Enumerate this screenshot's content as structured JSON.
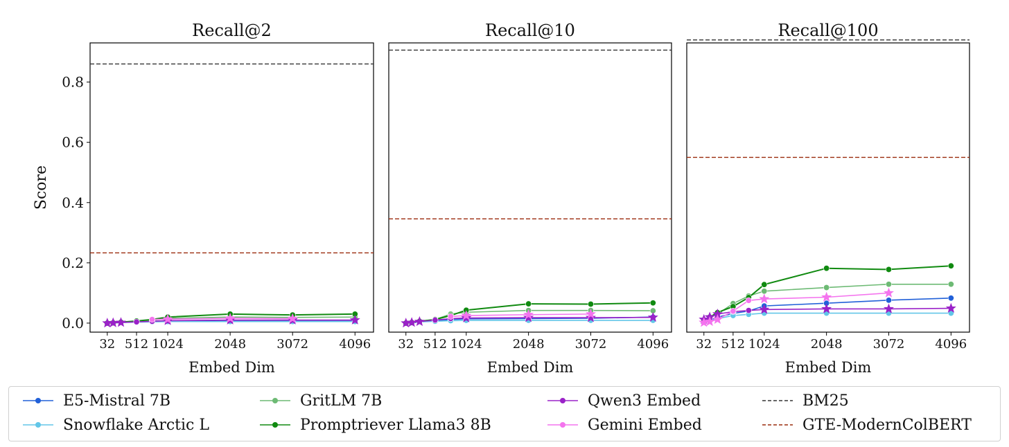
{
  "chart_data": [
    {
      "type": "line",
      "title": "Recall@2",
      "xlabel": "Embed Dim",
      "ylabel": "Score",
      "ylim": [
        -0.03,
        0.93
      ],
      "xlim": [
        -250,
        4400
      ],
      "ticks_y": [
        0.0,
        0.2,
        0.4,
        0.6,
        0.8
      ],
      "ticks_x": [
        32,
        512,
        1024,
        2048,
        3072,
        4096
      ],
      "series": [
        {
          "name": "E5-Mistral 7B",
          "key": "e5",
          "x": [
            32,
            128,
            256,
            512,
            768,
            1024,
            2048,
            3072,
            4096
          ],
          "y": [
            0.0,
            0.0,
            0.002,
            0.004,
            0.006,
            0.008,
            0.009,
            0.009,
            0.009
          ]
        },
        {
          "name": "Snowflake Arctic L",
          "key": "snow",
          "x": [
            32,
            128,
            256,
            512,
            768,
            1024,
            2048,
            3072,
            4096
          ],
          "y": [
            0.0,
            0.001,
            0.002,
            0.003,
            0.004,
            0.005,
            0.005,
            0.005,
            0.005
          ]
        },
        {
          "name": "GritLM 7B",
          "key": "grit",
          "x": [
            32,
            128,
            256,
            512,
            768,
            1024,
            2048,
            3072,
            4096
          ],
          "y": [
            0.0,
            0.001,
            0.003,
            0.006,
            0.01,
            0.016,
            0.02,
            0.019,
            0.02
          ]
        },
        {
          "name": "Promptriever Llama3 8B",
          "key": "prompt",
          "x": [
            32,
            128,
            256,
            512,
            768,
            1024,
            2048,
            3072,
            4096
          ],
          "y": [
            0.0,
            0.001,
            0.003,
            0.007,
            0.012,
            0.02,
            0.03,
            0.027,
            0.03
          ]
        },
        {
          "name": "Qwen3 Embed",
          "key": "qwen",
          "x": [
            32,
            128,
            256,
            512,
            768,
            1024,
            2048,
            3072,
            4096
          ],
          "y": [
            0.0,
            0.001,
            0.002,
            0.004,
            0.006,
            0.008,
            0.01,
            0.01,
            0.01
          ]
        },
        {
          "name": "Gemini Embed",
          "key": "gem",
          "x": [
            768,
            1024,
            2048,
            3072
          ],
          "y": [
            0.012,
            0.013,
            0.016,
            0.015
          ]
        }
      ],
      "baselines": [
        {
          "name": "BM25",
          "key": "bm25",
          "y": 0.86
        },
        {
          "name": "GTE-ModernColBERT",
          "key": "gte",
          "y": 0.233
        }
      ]
    },
    {
      "type": "line",
      "title": "Recall@10",
      "xlabel": "Embed Dim",
      "ylabel": "Score",
      "ylim": [
        -0.03,
        0.93
      ],
      "xlim": [
        -250,
        4400
      ],
      "ticks_y": [
        0.0,
        0.2,
        0.4,
        0.6,
        0.8
      ],
      "ticks_x": [
        32,
        512,
        1024,
        2048,
        3072,
        4096
      ],
      "series": [
        {
          "name": "E5-Mistral 7B",
          "key": "e5",
          "x": [
            32,
            128,
            256,
            512,
            768,
            1024,
            2048,
            3072,
            4096
          ],
          "y": [
            0.0,
            0.0,
            0.004,
            0.008,
            0.012,
            0.014,
            0.015,
            0.016,
            0.02
          ]
        },
        {
          "name": "Snowflake Arctic L",
          "key": "snow",
          "x": [
            32,
            128,
            256,
            512,
            768,
            1024,
            2048,
            3072,
            4096
          ],
          "y": [
            0.0,
            0.001,
            0.004,
            0.006,
            0.008,
            0.009,
            0.009,
            0.009,
            0.009
          ]
        },
        {
          "name": "GritLM 7B",
          "key": "grit",
          "x": [
            32,
            128,
            256,
            512,
            768,
            1024,
            2048,
            3072,
            4096
          ],
          "y": [
            0.0,
            0.002,
            0.006,
            0.012,
            0.03,
            0.036,
            0.042,
            0.042,
            0.041
          ]
        },
        {
          "name": "Promptriever Llama3 8B",
          "key": "prompt",
          "x": [
            32,
            128,
            256,
            512,
            768,
            1024,
            2048,
            3072,
            4096
          ],
          "y": [
            0.0,
            0.002,
            0.006,
            0.012,
            0.025,
            0.043,
            0.064,
            0.063,
            0.067
          ]
        },
        {
          "name": "Qwen3 Embed",
          "key": "qwen",
          "x": [
            32,
            128,
            256,
            512,
            768,
            1024,
            2048,
            3072,
            4096
          ],
          "y": [
            0.0,
            0.002,
            0.005,
            0.01,
            0.015,
            0.017,
            0.018,
            0.018,
            0.019
          ]
        },
        {
          "name": "Gemini Embed",
          "key": "gem",
          "x": [
            768,
            1024,
            2048,
            3072
          ],
          "y": [
            0.022,
            0.025,
            0.028,
            0.03
          ]
        }
      ],
      "baselines": [
        {
          "name": "BM25",
          "key": "bm25",
          "y": 0.906
        },
        {
          "name": "GTE-ModernColBERT",
          "key": "gte",
          "y": 0.346
        }
      ]
    },
    {
      "type": "line",
      "title": "Recall@100",
      "xlabel": "Embed Dim",
      "ylabel": "Score",
      "ylim": [
        -0.03,
        0.93
      ],
      "xlim": [
        -250,
        4400
      ],
      "ticks_y": [
        0.0,
        0.2,
        0.4,
        0.6,
        0.8
      ],
      "ticks_x": [
        32,
        512,
        1024,
        2048,
        3072,
        4096
      ],
      "series": [
        {
          "name": "E5-Mistral 7B",
          "key": "e5",
          "x": [
            32,
            128,
            256,
            512,
            768,
            1024,
            2048,
            3072,
            4096
          ],
          "y": [
            0.005,
            0.01,
            0.02,
            0.032,
            0.04,
            0.057,
            0.066,
            0.076,
            0.083
          ]
        },
        {
          "name": "Snowflake Arctic L",
          "key": "snow",
          "x": [
            32,
            128,
            256,
            512,
            768,
            1024,
            2048,
            3072,
            4096
          ],
          "y": [
            0.003,
            0.007,
            0.015,
            0.025,
            0.029,
            0.033,
            0.033,
            0.033,
            0.033
          ]
        },
        {
          "name": "GritLM 7B",
          "key": "grit",
          "x": [
            32,
            128,
            256,
            512,
            768,
            1024,
            2048,
            3072,
            4096
          ],
          "y": [
            0.008,
            0.018,
            0.03,
            0.065,
            0.09,
            0.106,
            0.118,
            0.129,
            0.129
          ]
        },
        {
          "name": "Promptriever Llama3 8B",
          "key": "prompt",
          "x": [
            32,
            128,
            256,
            512,
            768,
            1024,
            2048,
            3072,
            4096
          ],
          "y": [
            0.01,
            0.02,
            0.035,
            0.055,
            0.085,
            0.128,
            0.182,
            0.178,
            0.19
          ]
        },
        {
          "name": "Qwen3 Embed",
          "key": "qwen",
          "x": [
            32,
            128,
            256,
            512,
            768,
            1024,
            2048,
            3072,
            4096
          ],
          "y": [
            0.012,
            0.02,
            0.03,
            0.038,
            0.042,
            0.045,
            0.047,
            0.047,
            0.049
          ]
        },
        {
          "name": "Gemini Embed",
          "key": "gem",
          "x": [
            32,
            128,
            256,
            512,
            768,
            1024,
            2048,
            3072
          ],
          "y": [
            0.002,
            0.005,
            0.012,
            0.04,
            0.075,
            0.08,
            0.086,
            0.1
          ]
        }
      ],
      "baselines": [
        {
          "name": "BM25",
          "key": "bm25",
          "y": 0.94
        },
        {
          "name": "GTE-ModernColBERT",
          "key": "gte",
          "y": 0.55
        }
      ]
    }
  ],
  "colors": {
    "e5": "#2160d8",
    "snow": "#62c6e8",
    "grit": "#6dba74",
    "prompt": "#108a10",
    "qwen": "#9a22c8",
    "gem": "#f474ee",
    "bm25": "#333333",
    "gte": "#9a2a0c"
  },
  "legend": [
    {
      "key": "e5",
      "label": "E5-Mistral 7B",
      "style": "line-marker"
    },
    {
      "key": "snow",
      "label": "Snowflake Arctic L",
      "style": "line-marker"
    },
    {
      "key": "grit",
      "label": "GritLM 7B",
      "style": "line-marker"
    },
    {
      "key": "prompt",
      "label": "Promptriever Llama3 8B",
      "style": "line-marker"
    },
    {
      "key": "qwen",
      "label": "Qwen3 Embed",
      "style": "line-marker"
    },
    {
      "key": "gem",
      "label": "Gemini Embed",
      "style": "line-marker"
    },
    {
      "key": "bm25",
      "label": "BM25",
      "style": "dashed"
    },
    {
      "key": "gte",
      "label": "GTE-ModernColBERT",
      "style": "dashed"
    }
  ]
}
